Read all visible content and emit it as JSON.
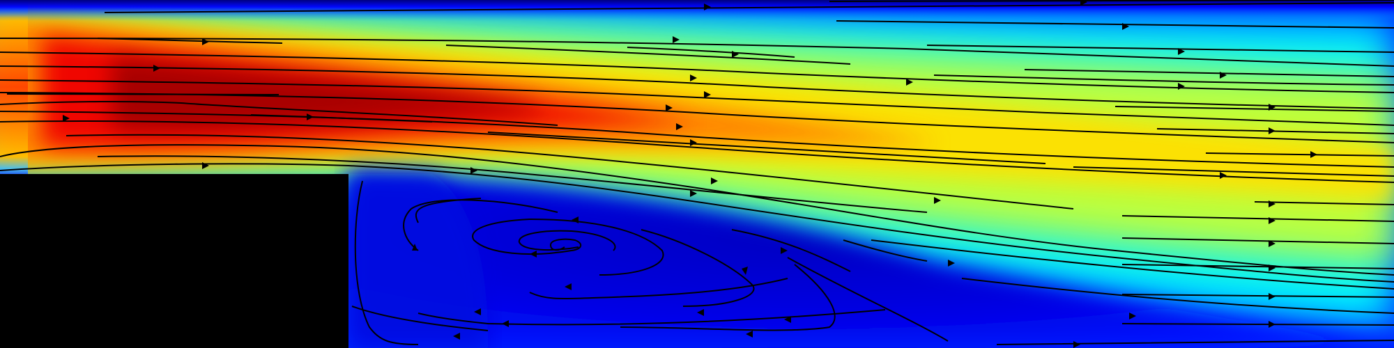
{
  "figure": {
    "colormap": "jet",
    "colormap_stops": [
      "#00007f",
      "#0000ff",
      "#007fff",
      "#00ffff",
      "#7fff7f",
      "#ffff00",
      "#ff7f00",
      "#ff0000",
      "#7f0000"
    ],
    "obstacle_color": "#000000",
    "streamline_color": "#000000",
    "has_recirculation_vortex": true,
    "has_legend": false,
    "has_axes": false
  }
}
